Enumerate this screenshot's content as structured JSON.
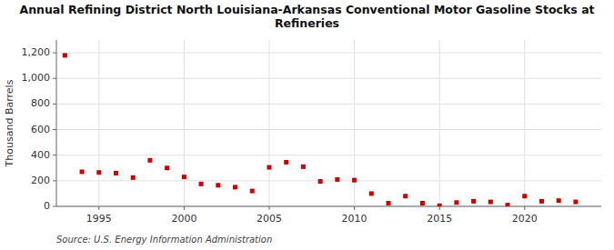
{
  "chart_data": {
    "type": "scatter",
    "title": "Annual Refining District North Louisiana-Arkansas Conventional Motor Gasoline Stocks at\nRefineries",
    "y_label": "Thousand Barrels",
    "annotations": [
      "Source: U.S. Energy Information Administration"
    ],
    "x": [
      1993,
      1994,
      1995,
      1996,
      1997,
      1998,
      1999,
      2000,
      2001,
      2002,
      2003,
      2004,
      2005,
      2006,
      2007,
      2008,
      2009,
      2010,
      2011,
      2012,
      2013,
      2014,
      2015,
      2016,
      2017,
      2018,
      2019,
      2020,
      2021,
      2022,
      2023
    ],
    "values": [
      1180,
      270,
      265,
      260,
      225,
      360,
      300,
      230,
      175,
      165,
      150,
      120,
      305,
      345,
      310,
      195,
      210,
      205,
      100,
      25,
      80,
      25,
      5,
      30,
      40,
      35,
      10,
      80,
      40,
      45,
      35
    ],
    "color": "#cc0000",
    "marker": "square",
    "xlim": [
      1992.5,
      2024.5
    ],
    "xticks": [
      1995,
      2000,
      2005,
      2010,
      2015,
      2020
    ],
    "ylim": [
      0,
      1300
    ],
    "yticks": [
      0,
      200,
      400,
      600,
      800,
      {
        "value": 1000,
        "label": "1,000"
      },
      {
        "value": 1200,
        "label": "1,200"
      }
    ],
    "grid": true
  }
}
